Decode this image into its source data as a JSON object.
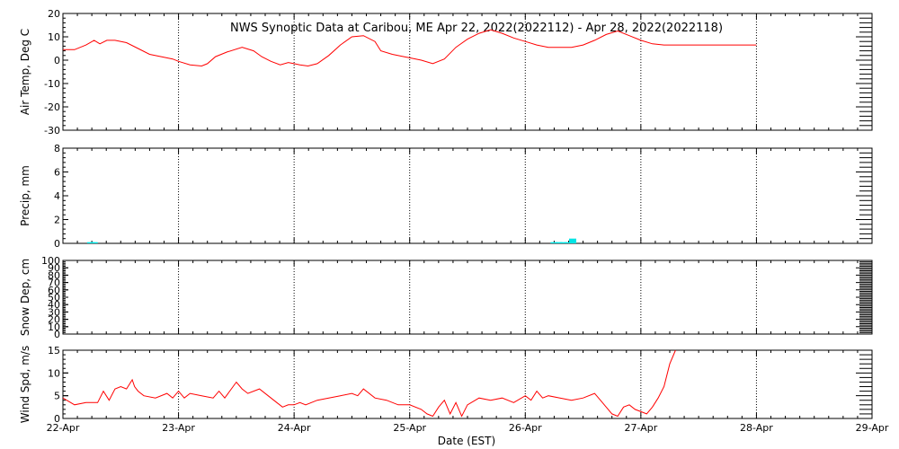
{
  "title": "NWS Synoptic Data at Caribou, ME   Apr 22, 2022(2022112) - Apr 28, 2022(2022118)",
  "x_axis": {
    "label": "Date (EST)",
    "ticks": [
      "22-Apr",
      "23-Apr",
      "24-Apr",
      "25-Apr",
      "26-Apr",
      "27-Apr",
      "28-Apr",
      "29-Apr"
    ],
    "range_days": [
      0,
      7
    ]
  },
  "colors": {
    "temp_line": "#ff0000",
    "wind_line": "#ff0000",
    "precip_bar": "#00e5e5",
    "frame": "#000000",
    "grid": "#000000"
  },
  "chart_data": [
    {
      "type": "line",
      "ylabel": "Air Temp, Deg C",
      "ylim": [
        -30,
        20
      ],
      "yticks": [
        -30,
        -20,
        -10,
        0,
        10,
        20
      ],
      "grid": "vertical dotted at day boundaries",
      "series": [
        {
          "x": [
            0.0,
            0.1,
            0.2,
            0.27,
            0.32,
            0.38,
            0.45,
            0.55,
            0.65,
            0.75,
            0.85,
            0.95,
            1.0,
            1.1,
            1.2,
            1.25,
            1.32,
            1.42,
            1.55,
            1.65,
            1.72,
            1.8,
            1.88,
            1.95,
            2.0,
            2.05,
            2.12,
            2.2,
            2.3,
            2.4,
            2.5,
            2.6,
            2.7,
            2.75,
            2.85,
            2.95,
            3.0,
            3.1,
            3.2,
            3.3,
            3.4,
            3.5,
            3.6,
            3.7,
            3.8,
            3.9,
            4.0,
            4.1,
            4.2,
            4.3,
            4.4,
            4.5,
            4.6,
            4.7,
            4.8,
            4.9,
            5.0,
            5.1,
            5.2,
            5.4,
            5.6,
            5.8,
            6.0
          ],
          "values": [
            4.5,
            4.5,
            6.5,
            8.5,
            7.0,
            8.5,
            8.5,
            7.5,
            5.0,
            2.5,
            1.5,
            0.5,
            -0.5,
            -2.0,
            -2.5,
            -1.5,
            1.5,
            3.5,
            5.5,
            4.0,
            1.5,
            -0.5,
            -2.0,
            -1.0,
            -1.5,
            -2.0,
            -2.5,
            -1.5,
            2.0,
            6.5,
            10.0,
            10.5,
            8.0,
            4.0,
            2.5,
            1.5,
            1.0,
            0.0,
            -1.5,
            0.5,
            5.5,
            9.0,
            11.5,
            13.0,
            11.5,
            9.5,
            8.0,
            6.5,
            5.5,
            5.5,
            5.5,
            6.5,
            8.5,
            11.0,
            12.5,
            10.5,
            8.5,
            7.0,
            6.5,
            6.5,
            6.5,
            6.5,
            6.5
          ]
        }
      ]
    },
    {
      "type": "bar",
      "ylabel": "Precip, mm",
      "ylim": [
        0,
        8
      ],
      "yticks": [
        0,
        2,
        4,
        6,
        8
      ],
      "grid": "vertical dotted at day boundaries",
      "series": [
        {
          "x": [
            0.24,
            0.27,
            4.25,
            4.29,
            4.33,
            4.37,
            4.41
          ],
          "values": [
            0.1,
            0.1,
            0.1,
            0.1,
            0.1,
            0.1,
            0.4
          ]
        }
      ]
    },
    {
      "type": "line",
      "ylabel": "Snow Dep, cm",
      "ylim": [
        0,
        100
      ],
      "yticks": [
        0,
        10,
        20,
        30,
        40,
        50,
        60,
        70,
        80,
        90,
        100
      ],
      "grid": "vertical dotted at day boundaries",
      "series": []
    },
    {
      "type": "line",
      "ylabel": "Wind Spd, m/s",
      "ylim": [
        0,
        15
      ],
      "yticks": [
        0,
        5,
        10,
        15
      ],
      "grid": "vertical dotted at day boundaries",
      "series": [
        {
          "x": [
            0.0,
            0.1,
            0.2,
            0.3,
            0.35,
            0.4,
            0.45,
            0.5,
            0.55,
            0.6,
            0.62,
            0.65,
            0.7,
            0.8,
            0.9,
            0.95,
            1.0,
            1.05,
            1.1,
            1.2,
            1.3,
            1.35,
            1.4,
            1.5,
            1.55,
            1.6,
            1.7,
            1.8,
            1.85,
            1.9,
            1.95,
            2.0,
            2.05,
            2.1,
            2.2,
            2.3,
            2.4,
            2.5,
            2.55,
            2.6,
            2.7,
            2.8,
            2.9,
            3.0,
            3.1,
            3.15,
            3.2,
            3.25,
            3.3,
            3.35,
            3.4,
            3.45,
            3.5,
            3.6,
            3.7,
            3.8,
            3.9,
            4.0,
            4.05,
            4.1,
            4.15,
            4.2,
            4.3,
            4.4,
            4.5,
            4.6,
            4.65,
            4.7,
            4.75,
            4.8,
            4.85,
            4.9,
            4.95,
            5.0,
            5.05,
            5.1,
            5.15,
            5.2,
            5.25,
            5.3
          ],
          "values": [
            4.5,
            3.0,
            3.5,
            3.5,
            6.0,
            4.0,
            6.5,
            7.0,
            6.5,
            8.5,
            7.0,
            6.0,
            5.0,
            4.5,
            5.5,
            4.5,
            6.0,
            4.5,
            5.5,
            5.0,
            4.5,
            6.0,
            4.5,
            8.0,
            6.5,
            5.5,
            6.5,
            4.5,
            3.5,
            2.5,
            3.0,
            3.0,
            3.5,
            3.0,
            4.0,
            4.5,
            5.0,
            5.5,
            5.0,
            6.5,
            4.5,
            4.0,
            3.0,
            3.0,
            2.0,
            1.0,
            0.5,
            2.5,
            4.0,
            1.0,
            3.5,
            0.5,
            3.0,
            4.5,
            4.0,
            4.5,
            3.5,
            5.0,
            4.0,
            6.0,
            4.5,
            5.0,
            4.5,
            4.0,
            4.5,
            5.5,
            4.0,
            2.5,
            1.0,
            0.5,
            2.5,
            3.0,
            2.0,
            1.5,
            1.0,
            2.5,
            4.5,
            7.0,
            12.0,
            15.0
          ]
        }
      ]
    }
  ]
}
